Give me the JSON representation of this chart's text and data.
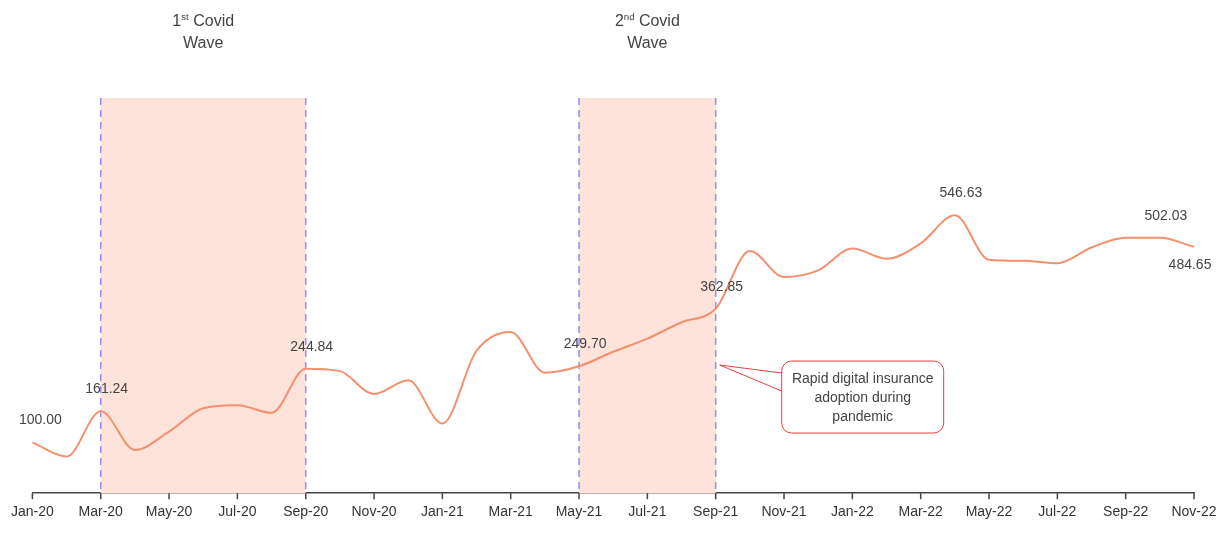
{
  "chart_data": {
    "type": "line",
    "categories": [
      "Jan-20",
      null,
      "Mar-20",
      null,
      "May-20",
      null,
      "Jul-20",
      null,
      "Sep-20",
      null,
      "Nov-20",
      null,
      "Jan-21",
      null,
      "Mar-21",
      null,
      "May-21",
      null,
      "Jul-21",
      null,
      "Sep-21",
      null,
      "Nov-21",
      null,
      "Jan-22",
      null,
      "Mar-22",
      null,
      "May-22",
      null,
      "Jul-22",
      null,
      "Sep-22",
      null,
      "Nov-22"
    ],
    "series": [
      {
        "color": "#f4906f",
        "values": [
          100,
          72,
          161.24,
          85,
          121,
          167,
          173,
          158,
          244.84,
          240,
          195,
          222,
          137,
          280,
          317,
          237,
          249.7,
          278,
          304,
          336,
          362.85,
          476,
          425,
          438,
          481,
          461,
          491,
          546.63,
          459,
          457,
          452,
          483,
          502,
          502.03,
          484.65
        ],
        "value_labels": [
          "100.00",
          null,
          "161.24",
          null,
          null,
          null,
          null,
          null,
          "244.84",
          null,
          null,
          null,
          null,
          null,
          null,
          null,
          "249.70",
          null,
          null,
          null,
          "362.85",
          null,
          null,
          null,
          null,
          null,
          null,
          "546.63",
          null,
          null,
          null,
          null,
          null,
          "502.03",
          "484.65"
        ]
      }
    ],
    "bands": [
      {
        "axis": "x",
        "from": "Mar-20",
        "to": "Sep-20",
        "label": "1$^{st}$ Covid Wave",
        "color": "#fde3da"
      },
      {
        "axis": "x",
        "from": "May-21",
        "to": "Sep-21",
        "label": "2$^{nd}$ Covid Wave",
        "color": "#fde3da"
      }
    ],
    "ref_lines": [
      {
        "axis": "x",
        "value": "Mar-20",
        "color": "#8f8ff5",
        "line_style": "dashed"
      },
      {
        "axis": "x",
        "value": "Sep-20",
        "color": "#8f8ff5",
        "line_style": "dashed"
      },
      {
        "axis": "x",
        "value": "May-21",
        "color": "#8f8ff5",
        "line_style": "dashed"
      },
      {
        "axis": "x",
        "value": "Sep-21",
        "color": "#8f8ff5",
        "line_style": "dashed"
      }
    ],
    "annotations": [
      "Rapid digital insurance adoption during pandemic"
    ],
    "legend": false,
    "grid": false,
    "marker": "none",
    "line_style": "solid",
    "tick_labels": "x"
  }
}
